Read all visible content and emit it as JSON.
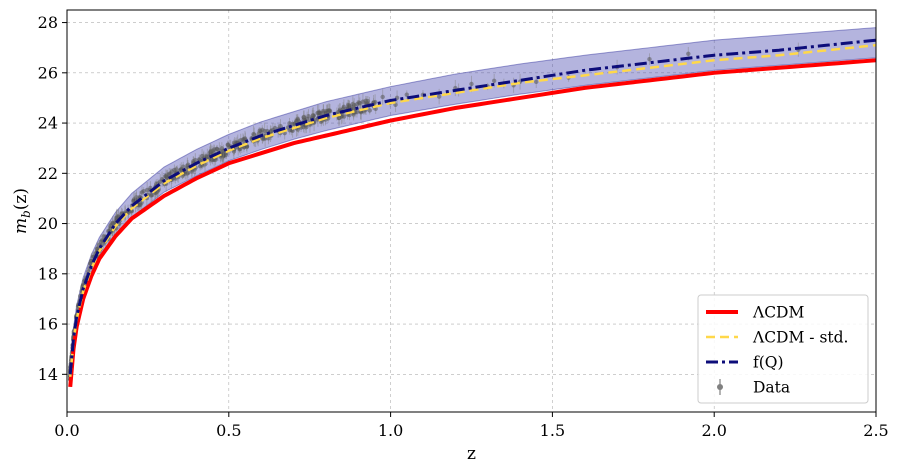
{
  "chart_data": {
    "type": "line",
    "title": "",
    "xlabel": "z",
    "ylabel": "m_b(z)",
    "xlim": [
      0.0,
      2.5
    ],
    "ylim": [
      12.5,
      28.5
    ],
    "xticks": [
      0.0,
      0.5,
      1.0,
      1.5,
      2.0,
      2.5
    ],
    "xtick_labels": [
      "0.0",
      "0.5",
      "1.0",
      "1.5",
      "2.0",
      "2.5"
    ],
    "yticks": [
      14,
      16,
      18,
      20,
      22,
      24,
      26,
      28
    ],
    "ytick_labels": [
      "14",
      "16",
      "18",
      "20",
      "22",
      "24",
      "26",
      "28"
    ],
    "grid": true,
    "legend_position": "bottom-right",
    "series": [
      {
        "name": "ΛCDM",
        "style": "solid",
        "color": "#ff0000",
        "x": [
          0.01,
          0.02,
          0.03,
          0.05,
          0.075,
          0.1,
          0.15,
          0.2,
          0.3,
          0.4,
          0.5,
          0.6,
          0.7,
          0.8,
          0.9,
          1.0,
          1.2,
          1.4,
          1.6,
          1.8,
          2.0,
          2.2,
          2.5
        ],
        "y": [
          13.5,
          15.0,
          15.9,
          17.0,
          17.9,
          18.6,
          19.5,
          20.2,
          21.1,
          21.8,
          22.4,
          22.8,
          23.2,
          23.5,
          23.8,
          24.1,
          24.6,
          25.0,
          25.4,
          25.7,
          26.0,
          26.2,
          26.5
        ]
      },
      {
        "name": "ΛCDM - std.",
        "style": "dashed",
        "color": "#ffd84a",
        "x": [
          0.01,
          0.02,
          0.03,
          0.05,
          0.075,
          0.1,
          0.15,
          0.2,
          0.3,
          0.4,
          0.5,
          0.6,
          0.7,
          0.8,
          0.9,
          1.0,
          1.2,
          1.4,
          1.6,
          1.8,
          2.0,
          2.2,
          2.5
        ],
        "y": [
          13.9,
          15.3,
          16.2,
          17.3,
          18.2,
          18.9,
          19.9,
          20.6,
          21.6,
          22.3,
          22.9,
          23.4,
          23.8,
          24.2,
          24.5,
          24.8,
          25.2,
          25.6,
          25.9,
          26.2,
          26.5,
          26.7,
          27.1
        ]
      },
      {
        "name": "f(Q)",
        "style": "dashdot",
        "color": "#0d0d7a",
        "x": [
          0.01,
          0.02,
          0.03,
          0.05,
          0.075,
          0.1,
          0.15,
          0.2,
          0.3,
          0.4,
          0.5,
          0.6,
          0.7,
          0.8,
          0.9,
          1.0,
          1.2,
          1.4,
          1.6,
          1.8,
          2.0,
          2.2,
          2.5
        ],
        "y": [
          14.0,
          15.4,
          16.3,
          17.4,
          18.3,
          19.0,
          20.0,
          20.7,
          21.7,
          22.4,
          23.0,
          23.5,
          23.9,
          24.3,
          24.6,
          24.9,
          25.3,
          25.7,
          26.1,
          26.4,
          26.7,
          26.9,
          27.3
        ]
      }
    ],
    "band": {
      "color": "#3a3aa8",
      "x": [
        0.01,
        0.02,
        0.03,
        0.05,
        0.075,
        0.1,
        0.15,
        0.2,
        0.3,
        0.4,
        0.5,
        0.6,
        0.7,
        0.8,
        0.9,
        1.0,
        1.2,
        1.4,
        1.6,
        1.8,
        2.0,
        2.2,
        2.5
      ],
      "lower": [
        13.5,
        14.95,
        15.85,
        16.95,
        17.85,
        18.55,
        19.55,
        20.25,
        21.25,
        21.9,
        22.5,
        22.95,
        23.35,
        23.7,
        24.0,
        24.3,
        24.75,
        25.15,
        25.5,
        25.8,
        26.1,
        26.3,
        26.6
      ],
      "upper": [
        14.5,
        15.85,
        16.75,
        17.85,
        18.75,
        19.45,
        20.45,
        21.2,
        22.25,
        22.95,
        23.55,
        24.05,
        24.45,
        24.85,
        25.15,
        25.45,
        25.95,
        26.35,
        26.7,
        27.0,
        27.3,
        27.5,
        27.8
      ]
    },
    "data_points": {
      "name": "Data",
      "color": "#808080",
      "description_hidden": false
    }
  },
  "legend": {
    "items": [
      {
        "label": "ΛCDM",
        "color": "#ff0000",
        "style": "solid"
      },
      {
        "label": "ΛCDM - std.",
        "color": "#ffd84a",
        "style": "dashed"
      },
      {
        "label": "f(Q)",
        "color": "#0d0d7a",
        "style": "dashdot"
      },
      {
        "label": "Data",
        "color": "#808080",
        "style": "errorbar"
      }
    ]
  }
}
